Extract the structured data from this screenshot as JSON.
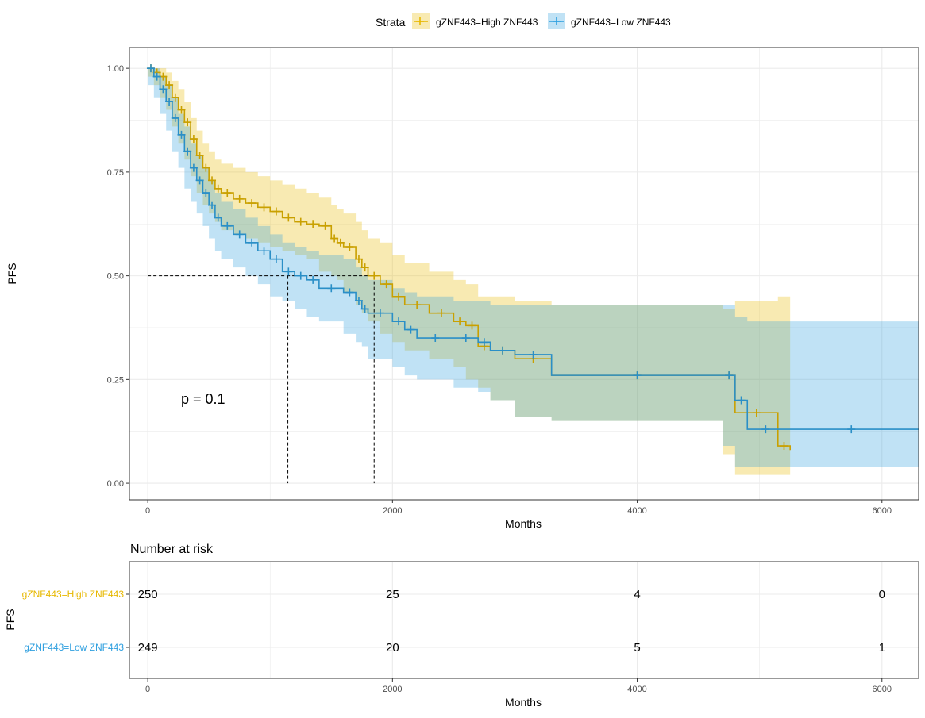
{
  "legend": {
    "title": "Strata",
    "items": [
      {
        "label": "gZNF443=High ZNF443",
        "color": "#E7B800"
      },
      {
        "label": "gZNF443=Low ZNF443",
        "color": "#2E9FDF"
      }
    ]
  },
  "colors": {
    "high": "#E7B800",
    "high_line": "#C9A000",
    "low": "#2E9FDF",
    "low_line": "#2A8FC7",
    "grid": "#ebebeb",
    "axis_text": "#4d4d4d"
  },
  "chart_data": [
    {
      "type": "line",
      "subtype": "kaplan-meier",
      "xlabel": "Months",
      "ylabel": "PFS",
      "xlim": [
        -150,
        6300
      ],
      "ylim": [
        -0.04,
        1.05
      ],
      "x_ticks": [
        0,
        2000,
        4000,
        6000
      ],
      "y_ticks": [
        0.0,
        0.25,
        0.5,
        0.75,
        1.0
      ],
      "y_tick_labels": [
        "0.00",
        "0.25",
        "0.50",
        "0.75",
        "1.00"
      ],
      "grid": true,
      "legend_position": "top",
      "annotation": "p = 0.1",
      "median_lines": [
        {
          "series": "gZNF443=Low ZNF443",
          "x": 1145,
          "y": 0.5
        },
        {
          "series": "gZNF443=High ZNF443",
          "x": 1850,
          "y": 0.5
        }
      ],
      "series": [
        {
          "name": "gZNF443=High ZNF443",
          "color": "#E7B800",
          "x": [
            0,
            50,
            100,
            150,
            200,
            250,
            300,
            350,
            400,
            450,
            500,
            550,
            600,
            700,
            800,
            900,
            1000,
            1100,
            1200,
            1300,
            1400,
            1500,
            1550,
            1600,
            1700,
            1750,
            1800,
            1900,
            2000,
            2100,
            2300,
            2500,
            2600,
            2700,
            2800,
            3000,
            3300,
            4700,
            4800,
            5150,
            5250
          ],
          "y": [
            1.0,
            0.99,
            0.98,
            0.96,
            0.93,
            0.9,
            0.87,
            0.83,
            0.79,
            0.76,
            0.73,
            0.71,
            0.7,
            0.685,
            0.675,
            0.665,
            0.655,
            0.64,
            0.63,
            0.625,
            0.62,
            0.59,
            0.58,
            0.57,
            0.54,
            0.52,
            0.5,
            0.48,
            0.45,
            0.43,
            0.41,
            0.39,
            0.38,
            0.33,
            0.32,
            0.3,
            0.26,
            0.26,
            0.17,
            0.09,
            0.08
          ],
          "lower": [
            1.0,
            0.98,
            0.96,
            0.93,
            0.9,
            0.86,
            0.82,
            0.78,
            0.74,
            0.7,
            0.67,
            0.65,
            0.63,
            0.61,
            0.6,
            0.59,
            0.58,
            0.57,
            0.56,
            0.55,
            0.54,
            0.51,
            0.5,
            0.49,
            0.46,
            0.43,
            0.41,
            0.39,
            0.36,
            0.34,
            0.32,
            0.3,
            0.28,
            0.25,
            0.23,
            0.2,
            0.16,
            0.15,
            0.07,
            0.02,
            0.02
          ],
          "upper": [
            1.0,
            1.0,
            1.0,
            0.99,
            0.97,
            0.95,
            0.92,
            0.88,
            0.85,
            0.82,
            0.8,
            0.78,
            0.77,
            0.76,
            0.75,
            0.74,
            0.73,
            0.72,
            0.71,
            0.7,
            0.69,
            0.67,
            0.66,
            0.65,
            0.63,
            0.61,
            0.59,
            0.58,
            0.55,
            0.53,
            0.51,
            0.49,
            0.48,
            0.45,
            0.45,
            0.44,
            0.43,
            0.42,
            0.44,
            0.45,
            0.45
          ]
        },
        {
          "name": "gZNF443=Low ZNF443",
          "color": "#2E9FDF",
          "x": [
            0,
            50,
            100,
            150,
            200,
            250,
            300,
            350,
            400,
            450,
            500,
            550,
            600,
            700,
            800,
            900,
            1000,
            1100,
            1200,
            1300,
            1400,
            1600,
            1700,
            1750,
            1800,
            2000,
            2100,
            2200,
            2500,
            2700,
            2800,
            3000,
            3300,
            4700,
            4800,
            4900,
            5200,
            6300
          ],
          "y": [
            1.0,
            0.98,
            0.95,
            0.92,
            0.88,
            0.84,
            0.8,
            0.76,
            0.73,
            0.7,
            0.67,
            0.64,
            0.62,
            0.6,
            0.58,
            0.56,
            0.54,
            0.51,
            0.5,
            0.49,
            0.47,
            0.46,
            0.44,
            0.42,
            0.41,
            0.39,
            0.37,
            0.35,
            0.35,
            0.34,
            0.32,
            0.31,
            0.26,
            0.26,
            0.2,
            0.13,
            0.13,
            0.13
          ],
          "lower": [
            1.0,
            0.96,
            0.93,
            0.89,
            0.85,
            0.8,
            0.76,
            0.71,
            0.68,
            0.65,
            0.62,
            0.59,
            0.56,
            0.54,
            0.52,
            0.5,
            0.48,
            0.45,
            0.44,
            0.42,
            0.4,
            0.39,
            0.36,
            0.34,
            0.33,
            0.3,
            0.28,
            0.26,
            0.25,
            0.23,
            0.22,
            0.2,
            0.16,
            0.15,
            0.09,
            0.04,
            0.04,
            0.04
          ],
          "upper": [
            1.0,
            1.0,
            0.98,
            0.96,
            0.93,
            0.89,
            0.86,
            0.82,
            0.79,
            0.76,
            0.73,
            0.7,
            0.68,
            0.66,
            0.64,
            0.62,
            0.6,
            0.58,
            0.57,
            0.56,
            0.55,
            0.54,
            0.52,
            0.5,
            0.49,
            0.47,
            0.46,
            0.45,
            0.44,
            0.44,
            0.43,
            0.43,
            0.43,
            0.43,
            0.4,
            0.39,
            0.39,
            0.39
          ]
        }
      ]
    },
    {
      "type": "table",
      "title": "Number at risk",
      "xlabel": "Months",
      "ylabel": "PFS",
      "x_ticks": [
        0,
        2000,
        4000,
        6000
      ],
      "rows": [
        {
          "label": "gZNF443=High ZNF443",
          "color": "#E7B800",
          "values": [
            250,
            25,
            4,
            0
          ]
        },
        {
          "label": "gZNF443=Low ZNF443",
          "color": "#2E9FDF",
          "values": [
            249,
            20,
            5,
            1
          ]
        }
      ]
    }
  ]
}
